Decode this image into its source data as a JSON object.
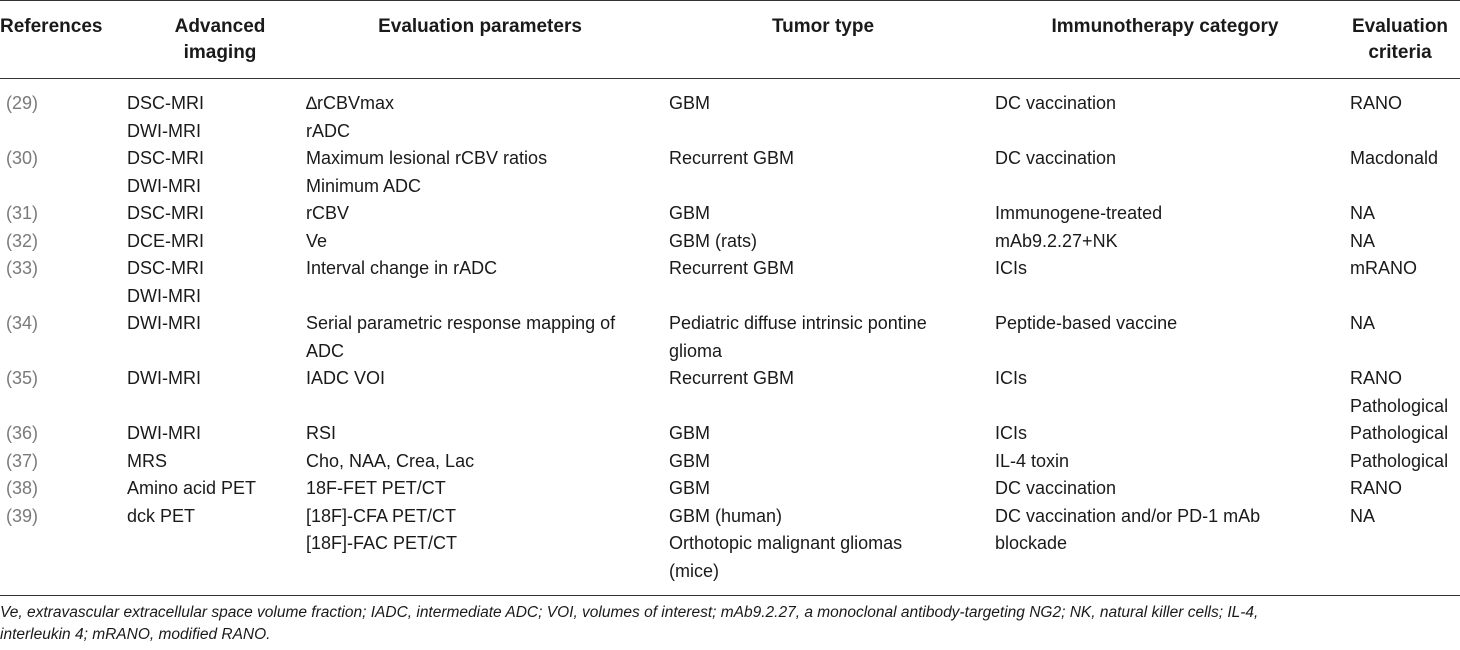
{
  "headers": {
    "references": "References",
    "imaging": [
      "Advanced",
      "imaging"
    ],
    "params": "Evaluation parameters",
    "tumor": "Tumor type",
    "immuno": "Immunotherapy category",
    "criteria": [
      "Evaluation",
      "criteria"
    ]
  },
  "rows": [
    {
      "ref": "(29)",
      "imaging": [
        "DSC-MRI",
        "DWI-MRI"
      ],
      "params": [
        "∆rCBVmax",
        "rADC"
      ],
      "tumor": [
        "GBM"
      ],
      "immuno": [
        "DC vaccination"
      ],
      "criteria": [
        "RANO"
      ]
    },
    {
      "ref": "(30)",
      "imaging": [
        "DSC-MRI",
        "DWI-MRI"
      ],
      "params": [
        "Maximum lesional rCBV ratios",
        "Minimum ADC"
      ],
      "tumor": [
        "Recurrent GBM"
      ],
      "immuno": [
        "DC vaccination"
      ],
      "criteria": [
        "Macdonald"
      ]
    },
    {
      "ref": "(31)",
      "imaging": [
        "DSC-MRI"
      ],
      "params": [
        "rCBV"
      ],
      "tumor": [
        "GBM"
      ],
      "immuno": [
        "Immunogene-treated"
      ],
      "criteria": [
        "NA"
      ]
    },
    {
      "ref": "(32)",
      "imaging": [
        "DCE-MRI"
      ],
      "params": [
        "Ve"
      ],
      "tumor": [
        "GBM (rats)"
      ],
      "immuno": [
        "mAb9.2.27+NK"
      ],
      "criteria": [
        "NA"
      ]
    },
    {
      "ref": "(33)",
      "imaging": [
        "DSC-MRI",
        "DWI-MRI"
      ],
      "params": [
        "Interval change in rADC"
      ],
      "tumor": [
        "Recurrent GBM"
      ],
      "immuno": [
        "ICIs"
      ],
      "criteria": [
        "mRANO"
      ]
    },
    {
      "ref": "(34)",
      "imaging": [
        "DWI-MRI"
      ],
      "params": [
        "Serial parametric response mapping of",
        "ADC"
      ],
      "tumor": [
        "Pediatric diffuse intrinsic pontine",
        "glioma"
      ],
      "immuno": [
        "Peptide-based vaccine"
      ],
      "criteria": [
        "NA"
      ]
    },
    {
      "ref": "(35)",
      "imaging": [
        "DWI-MRI"
      ],
      "params": [
        "IADC VOI"
      ],
      "tumor": [
        "Recurrent GBM"
      ],
      "immuno": [
        "ICIs"
      ],
      "criteria": [
        "RANO",
        "Pathological"
      ]
    },
    {
      "ref": "(36)",
      "imaging": [
        "DWI-MRI"
      ],
      "params": [
        "RSI"
      ],
      "tumor": [
        "GBM"
      ],
      "immuno": [
        "ICIs"
      ],
      "criteria": [
        "Pathological"
      ]
    },
    {
      "ref": "(37)",
      "imaging": [
        "MRS"
      ],
      "params": [
        "Cho, NAA, Crea, Lac"
      ],
      "tumor": [
        "GBM"
      ],
      "immuno": [
        "IL-4 toxin"
      ],
      "criteria": [
        "Pathological"
      ]
    },
    {
      "ref": "(38)",
      "imaging": [
        "Amino acid PET"
      ],
      "params": [
        "18F-FET PET/CT"
      ],
      "tumor": [
        "GBM"
      ],
      "immuno": [
        "DC vaccination"
      ],
      "criteria": [
        "RANO"
      ]
    },
    {
      "ref": "(39)",
      "imaging": [
        "dck PET"
      ],
      "params": [
        "[18F]-CFA PET/CT",
        "[18F]-FAC PET/CT"
      ],
      "tumor": [
        "GBM (human)",
        "Orthotopic malignant gliomas",
        "(mice)"
      ],
      "immuno": [
        "DC vaccination and/or PD-1 mAb",
        "blockade"
      ],
      "criteria": [
        "NA"
      ]
    }
  ],
  "footnote": [
    "Ve, extravascular extracellular space volume fraction; IADC, intermediate ADC; VOI, volumes of interest; mAb9.2.27, a monoclonal antibody-targeting NG2; NK, natural killer cells; IL-4,",
    "interleukin 4; mRANO, modified RANO."
  ]
}
